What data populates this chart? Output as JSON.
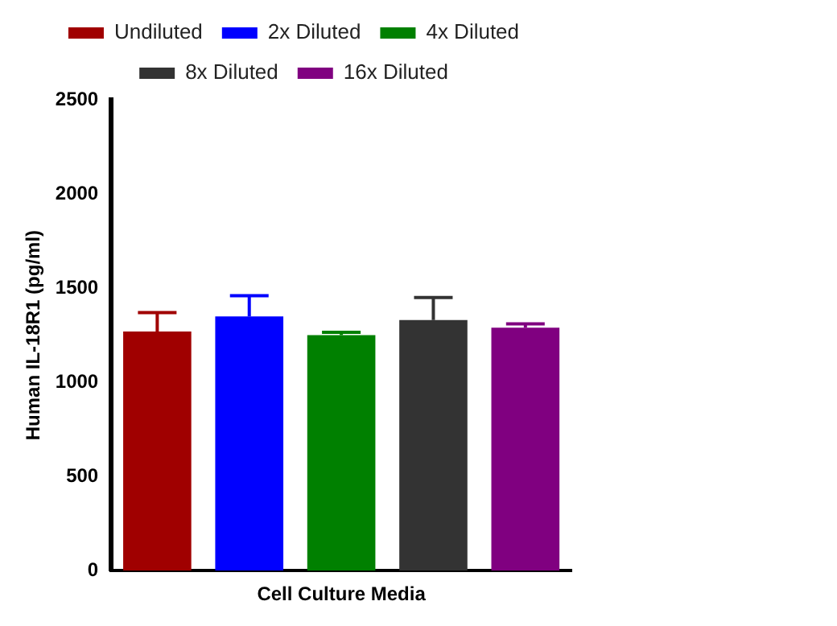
{
  "chart_data": {
    "type": "bar",
    "xlabel": "Cell Culture Media",
    "ylabel": "Human IL-18R1 (pg/ml)",
    "categories": [
      null
    ],
    "series": [
      {
        "name": "Undiluted",
        "color": "#a00000",
        "values": [
          1270
        ],
        "errors": [
          100
        ]
      },
      {
        "name": "2x Diluted",
        "color": "#0000ff",
        "values": [
          1350
        ],
        "errors": [
          110
        ]
      },
      {
        "name": "4x Diluted",
        "color": "#008000",
        "values": [
          1250
        ],
        "errors": [
          15
        ]
      },
      {
        "name": "8x Diluted",
        "color": "#333333",
        "values": [
          1330
        ],
        "errors": [
          120
        ]
      },
      {
        "name": "16x Diluted",
        "color": "#800080",
        "values": [
          1290
        ],
        "errors": [
          20
        ]
      }
    ],
    "ylim": [
      0,
      2500
    ],
    "yticks": [
      0,
      500,
      1000,
      1500,
      2000,
      2500
    ],
    "grid": false,
    "legend": "top"
  }
}
